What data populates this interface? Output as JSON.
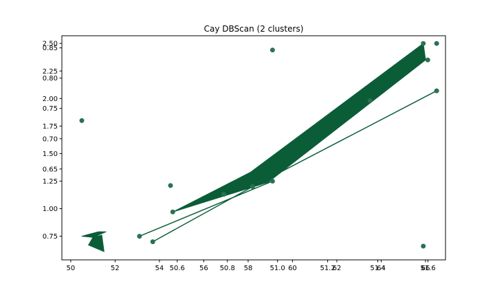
{
  "chart_data": {
    "type": "scatter",
    "title": "Cay DBScan (2 clusters)",
    "xlabel": "",
    "ylabel": "",
    "grid": false,
    "colors": {
      "line": "#0b5d38",
      "point": "#2c7250",
      "axis": "#000000",
      "background": "#ffffff"
    },
    "axes": [
      {
        "role": "primary",
        "xlim": [
          49.6,
          66.9
        ],
        "ylim": [
          0.535,
          2.57
        ],
        "x_ticks": [
          50,
          52,
          54,
          56,
          58,
          60,
          62,
          64,
          66
        ],
        "y_ticks": [
          0.75,
          1.0,
          1.25,
          1.5,
          1.75,
          2.0,
          2.25,
          2.5
        ],
        "x_tick_labels": [
          "50",
          "52",
          "54",
          "56",
          "58",
          "60",
          "62",
          "64",
          "66"
        ],
        "y_tick_labels": [
          "0.75",
          "1.00",
          "1.25",
          "1.50",
          "1.75",
          "2.00",
          "2.25",
          "2.50"
        ]
      },
      {
        "role": "secondary",
        "xlim": [
          50.14,
          51.67
        ],
        "ylim": [
          0.5,
          0.87
        ],
        "x_ticks": [
          50.6,
          50.8,
          51.0,
          51.2,
          51.4,
          51.6
        ],
        "y_ticks": [
          0.65,
          0.7,
          0.75,
          0.8,
          0.85
        ],
        "x_tick_labels": [
          "50.6",
          "50.8",
          "51.0",
          "51.2",
          "51.4",
          "51.6"
        ],
        "y_tick_labels": [
          "0.65",
          "0.70",
          "0.75",
          "0.80",
          "0.85"
        ]
      }
    ],
    "points": [
      {
        "x": 50.5,
        "y": 1.8
      },
      {
        "x": 53.7,
        "y": 0.7
      },
      {
        "x": 54.5,
        "y": 1.21
      },
      {
        "x": 54.6,
        "y": 0.97
      },
      {
        "x": 56.9,
        "y": 1.13
      },
      {
        "x": 58.2,
        "y": 1.2
      },
      {
        "x": 59.1,
        "y": 2.44
      },
      {
        "x": 59.1,
        "y": 1.25
      },
      {
        "x": 63.5,
        "y": 1.98
      },
      {
        "x": 65.9,
        "y": 2.5
      },
      {
        "x": 66.1,
        "y": 2.35
      },
      {
        "x": 66.5,
        "y": 2.5
      },
      {
        "x": 66.5,
        "y": 2.07
      },
      {
        "x": 65.9,
        "y": 0.66
      },
      {
        "x": 53.1,
        "y": 0.75
      }
    ],
    "lines": [
      {
        "x": [
          53.7,
          58.2,
          66.5
        ],
        "y": [
          0.7,
          1.2,
          2.07
        ]
      },
      {
        "x": [
          53.1,
          59.1
        ],
        "y": [
          0.75,
          1.25
        ]
      }
    ],
    "polygons": [
      {
        "x": [
          54.6,
          58.1,
          65.9,
          66.0,
          58.9,
          54.6
        ],
        "y": [
          0.97,
          1.33,
          2.5,
          2.35,
          1.24,
          0.97
        ]
      },
      {
        "x": [
          50.5,
          51.25,
          51.6,
          51.0,
          51.4,
          51.5,
          50.8,
          51.0,
          50.5
        ],
        "y": [
          0.75,
          0.79,
          0.79,
          0.74,
          0.76,
          0.61,
          0.67,
          0.74,
          0.75
        ]
      }
    ]
  }
}
